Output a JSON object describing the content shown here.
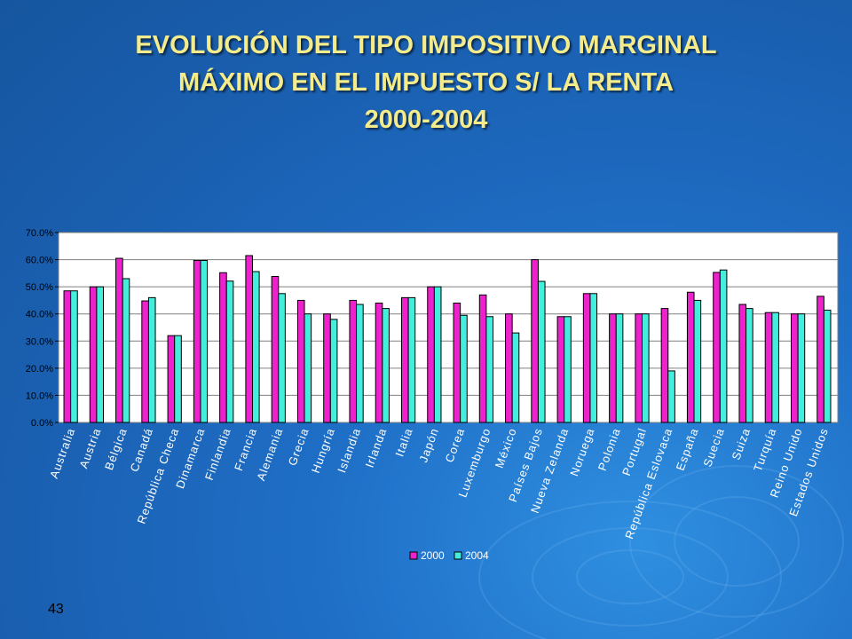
{
  "slide": {
    "title_line1": "EVOLUCIÓN DEL TIPO IMPOSITIVO MARGINAL",
    "title_line2": "MÁXIMO EN EL IMPUESTO S/ LA RENTA",
    "title_line3": "2000-2004",
    "slide_number": "43",
    "title_color": "#f4ec8c"
  },
  "chart_data": {
    "type": "bar",
    "title": "",
    "xlabel": "",
    "ylabel": "",
    "ylim": [
      0,
      70
    ],
    "yticks": [
      "0.0%",
      "10.0%",
      "20.0%",
      "30.0%",
      "40.0%",
      "50.0%",
      "60.0%",
      "70.0%"
    ],
    "grid": true,
    "legend_position": "bottom",
    "categories": [
      "Australia",
      "Austria",
      "Bélgica",
      "Canadá",
      "República Checa",
      "Dinamarca",
      "Finlandia",
      "Francia",
      "Alemania",
      "Grecia",
      "Hungría",
      "Islandia",
      "Irlanda",
      "Italia",
      "Japón",
      "Corea",
      "Luxemburgo",
      "México",
      "Países Bajos",
      "Nueva Zelanda",
      "Noruega",
      "Polonia",
      "Portugal",
      "República Eslovaca",
      "España",
      "Suecia",
      "Suiza",
      "Turquía",
      "Reino Unido",
      "Estados Unidos"
    ],
    "series": [
      {
        "name": "2000",
        "color": "#ee22cc",
        "values": [
          48.5,
          50,
          60.5,
          44.8,
          32,
          59.7,
          55.2,
          61.5,
          53.8,
          45,
          40,
          45,
          44,
          46,
          50,
          44,
          47,
          40,
          60,
          39,
          47.5,
          40,
          40,
          42,
          48,
          55.3,
          43.5,
          40.5,
          40,
          46.5
        ]
      },
      {
        "name": "2004",
        "color": "#44eedd",
        "values": [
          48.5,
          50,
          53,
          46,
          32,
          59.7,
          52.1,
          55.6,
          47.5,
          40,
          38,
          43.5,
          42,
          46,
          50,
          39.5,
          39,
          33,
          52,
          39,
          47.5,
          40,
          40,
          19,
          45,
          56.2,
          42,
          40.5,
          40,
          41.4
        ]
      }
    ]
  }
}
